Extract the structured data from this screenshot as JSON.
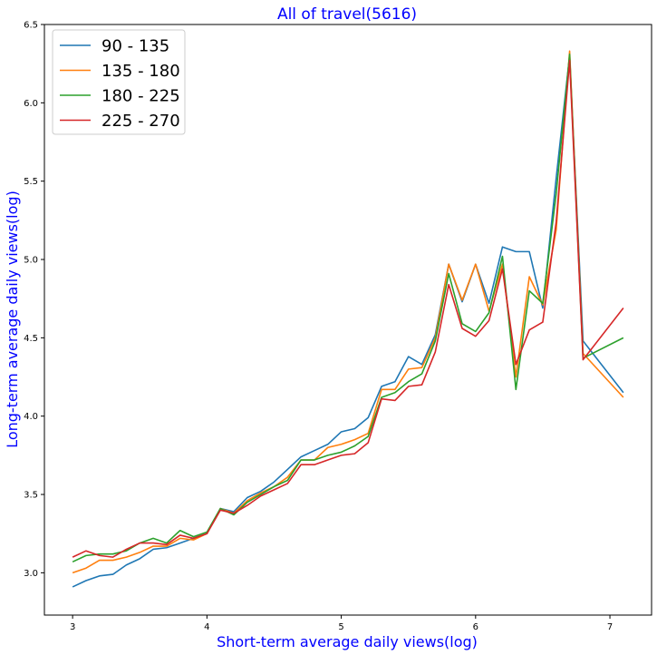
{
  "chart_data": {
    "type": "line",
    "title": "All of travel(5616)",
    "xlabel": "Short-term average daily views(log)",
    "ylabel": "Long-term average daily views(log)",
    "xlim": [
      2.79,
      7.31
    ],
    "ylim": [
      2.73,
      6.5
    ],
    "xticks": [
      3,
      4,
      5,
      6,
      7
    ],
    "xtick_labels": [
      "3",
      "4",
      "5",
      "6",
      "7"
    ],
    "yticks": [
      3.0,
      3.5,
      4.0,
      4.5,
      5.0,
      5.5,
      6.0,
      6.5
    ],
    "ytick_labels": [
      "3.0",
      "3.5",
      "4.0",
      "4.5",
      "5.0",
      "5.5",
      "6.0",
      "6.5"
    ],
    "grid": false,
    "legend_position": "upper-left",
    "x": [
      3.0,
      3.1,
      3.2,
      3.3,
      3.4,
      3.5,
      3.6,
      3.7,
      3.8,
      3.9,
      4.0,
      4.1,
      4.2,
      4.3,
      4.4,
      4.5,
      4.6,
      4.7,
      4.8,
      4.9,
      5.0,
      5.1,
      5.2,
      5.3,
      5.4,
      5.5,
      5.6,
      5.7,
      5.8,
      5.9,
      6.0,
      6.1,
      6.2,
      6.3,
      6.4,
      6.5,
      6.6,
      6.7,
      6.8,
      7.1
    ],
    "series": [
      {
        "name": "90 - 135",
        "color": "#1f77b4",
        "values": [
          2.91,
          2.95,
          2.98,
          2.99,
          3.05,
          3.09,
          3.15,
          3.16,
          3.19,
          3.22,
          3.25,
          3.41,
          3.39,
          3.48,
          3.52,
          3.58,
          3.66,
          3.74,
          3.78,
          3.82,
          3.9,
          3.92,
          3.99,
          4.19,
          4.22,
          4.38,
          4.33,
          4.52,
          4.97,
          4.73,
          4.97,
          4.72,
          5.08,
          5.05,
          5.05,
          4.69,
          5.52,
          6.3,
          4.48,
          4.15
        ]
      },
      {
        "name": "135 - 180",
        "color": "#ff7f0e",
        "values": [
          3.0,
          3.03,
          3.08,
          3.08,
          3.1,
          3.13,
          3.17,
          3.17,
          3.22,
          3.21,
          3.25,
          3.41,
          3.38,
          3.46,
          3.51,
          3.55,
          3.61,
          3.72,
          3.72,
          3.8,
          3.82,
          3.85,
          3.89,
          4.17,
          4.17,
          4.3,
          4.31,
          4.5,
          4.97,
          4.74,
          4.97,
          4.67,
          4.97,
          4.25,
          4.89,
          4.71,
          5.19,
          6.33,
          4.4,
          4.12
        ]
      },
      {
        "name": "180 - 225",
        "color": "#2ca02c",
        "values": [
          3.07,
          3.11,
          3.12,
          3.12,
          3.14,
          3.19,
          3.22,
          3.19,
          3.27,
          3.23,
          3.26,
          3.41,
          3.37,
          3.45,
          3.5,
          3.55,
          3.59,
          3.72,
          3.72,
          3.75,
          3.77,
          3.81,
          3.87,
          4.12,
          4.15,
          4.22,
          4.27,
          4.48,
          4.91,
          4.59,
          4.54,
          4.66,
          5.02,
          4.17,
          4.8,
          4.72,
          5.42,
          6.31,
          4.37,
          4.5
        ]
      },
      {
        "name": "225 - 270",
        "color": "#d62728",
        "values": [
          3.1,
          3.14,
          3.11,
          3.1,
          3.15,
          3.19,
          3.19,
          3.18,
          3.24,
          3.22,
          3.25,
          3.4,
          3.38,
          3.43,
          3.49,
          3.53,
          3.57,
          3.69,
          3.69,
          3.72,
          3.75,
          3.76,
          3.83,
          4.11,
          4.1,
          4.19,
          4.2,
          4.41,
          4.84,
          4.56,
          4.51,
          4.61,
          4.94,
          4.33,
          4.55,
          4.6,
          5.24,
          6.27,
          4.36,
          4.69
        ]
      }
    ]
  }
}
